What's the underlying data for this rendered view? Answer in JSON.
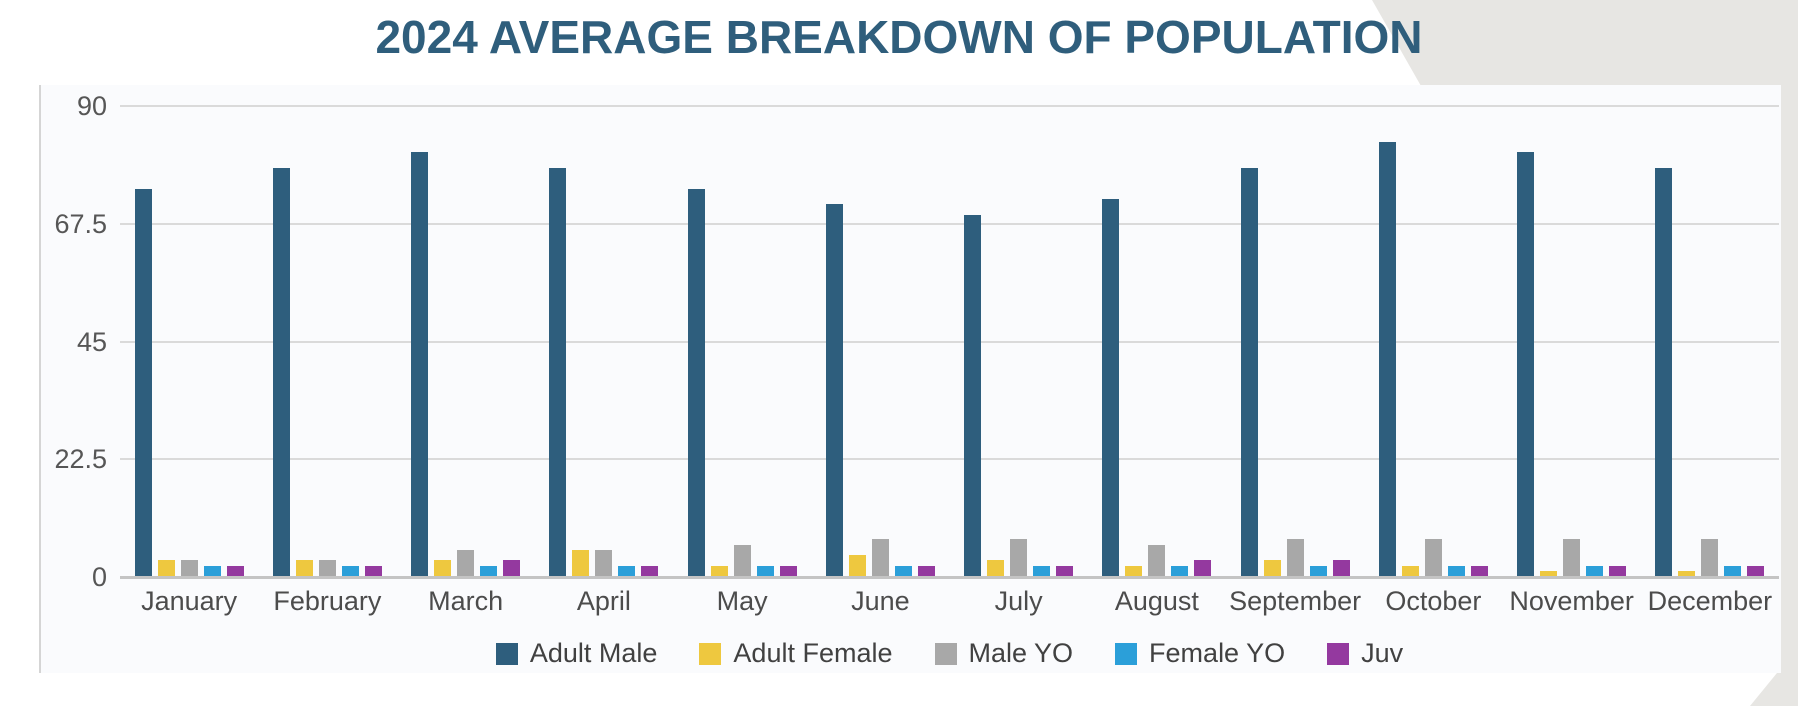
{
  "page": {
    "title_color": "#2f5e7c",
    "decoration_color": "#e7e6e3",
    "panel_bg": "#fafbfd",
    "gridline_color": "#dadada",
    "baseline_color": "#c4c4c4",
    "tick_text_color": "#565656",
    "month_text_color": "#4c4c4c",
    "legend_text_color": "#414141"
  },
  "chart_data": {
    "type": "bar",
    "title": "2024 AVERAGE BREAKDOWN OF POPULATION",
    "categories": [
      "January",
      "February",
      "March",
      "April",
      "May",
      "June",
      "July",
      "August",
      "September",
      "October",
      "November",
      "December"
    ],
    "series": [
      {
        "name": "Adult Male",
        "color": "#2e5e7d",
        "values": [
          74,
          78,
          81,
          78,
          74,
          71,
          69,
          72,
          78,
          83,
          81,
          78
        ]
      },
      {
        "name": "Adult Female",
        "color": "#eec83f",
        "values": [
          3,
          3,
          3,
          5,
          2,
          4,
          3,
          2,
          3,
          2,
          1,
          1
        ]
      },
      {
        "name": "Male YO",
        "color": "#a8a8a8",
        "values": [
          3,
          3,
          5,
          5,
          6,
          7,
          7,
          6,
          7,
          7,
          7,
          7
        ]
      },
      {
        "name": "Female YO",
        "color": "#2b9fd9",
        "values": [
          2,
          2,
          2,
          2,
          2,
          2,
          2,
          2,
          2,
          2,
          2,
          2
        ]
      },
      {
        "name": "Juv",
        "color": "#94399f",
        "values": [
          2,
          2,
          3,
          2,
          2,
          2,
          2,
          3,
          3,
          2,
          2,
          2
        ]
      }
    ],
    "xlabel": "",
    "ylabel": "",
    "ylim": [
      0,
      90
    ],
    "yticks": [
      0,
      22.5,
      45,
      67.5,
      90
    ],
    "grid": true,
    "legend_position": "bottom"
  }
}
